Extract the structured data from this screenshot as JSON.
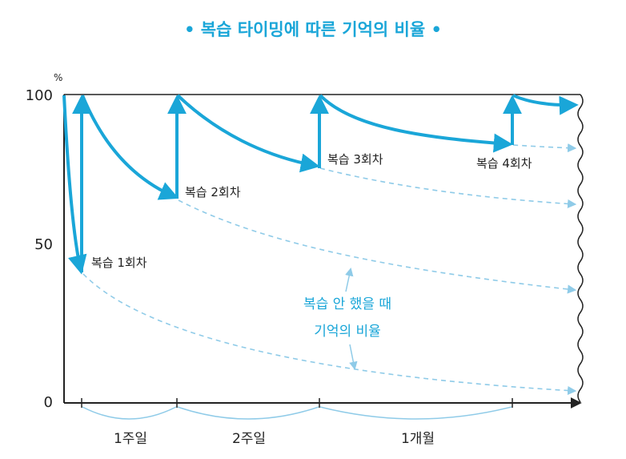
{
  "chart_data": {
    "type": "line",
    "title": "• 복습 타이밍에 따른 기억의 비율 •",
    "ylabel": "%",
    "ylim": [
      0,
      100
    ],
    "y_ticks": [
      "100",
      "50",
      "0"
    ],
    "grid": false,
    "review_labels": [
      "복습 1회차",
      "복습 2회차",
      "복습 3회차",
      "복습 4회차"
    ],
    "annotation": [
      "복습 안 했을 때",
      "기억의 비율"
    ],
    "periods": [
      "1주일",
      "2주일",
      "1개월"
    ],
    "series": [
      {
        "role": "with-review",
        "points": [
          [
            0,
            100
          ],
          [
            1,
            40
          ],
          [
            1,
            100
          ],
          [
            6,
            66
          ],
          [
            6,
            100
          ],
          [
            14,
            77
          ],
          [
            14,
            100
          ],
          [
            24,
            84
          ],
          [
            24,
            100
          ],
          [
            28,
            97
          ]
        ]
      },
      {
        "role": "without-review",
        "points": [
          [
            1,
            40
          ],
          [
            6,
            10
          ],
          [
            14,
            7
          ],
          [
            28,
            4
          ]
        ]
      },
      {
        "role": "forgetting-after-review-1",
        "points": [
          [
            6,
            66
          ],
          [
            14,
            48
          ],
          [
            28,
            37
          ]
        ]
      },
      {
        "role": "forgetting-after-review-2",
        "points": [
          [
            14,
            77
          ],
          [
            28,
            65
          ]
        ]
      },
      {
        "role": "forgetting-after-review-3",
        "points": [
          [
            24,
            84
          ],
          [
            28,
            82
          ]
        ]
      }
    ],
    "colors": {
      "solid": "#1aa6d8",
      "dashed": "#8fcbe8",
      "axis": "#222222",
      "brace": "#8fcbe8"
    }
  }
}
